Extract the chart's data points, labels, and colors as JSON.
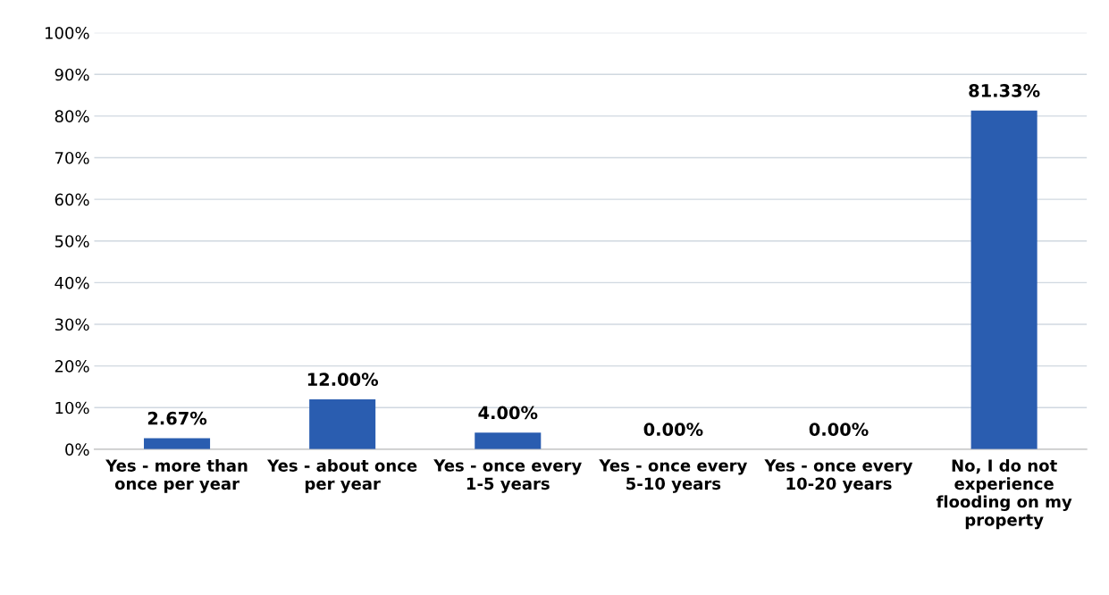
{
  "chart_data": {
    "type": "bar",
    "categories": [
      "Yes - more than\nonce per year",
      "Yes - about once\nper year",
      "Yes - once every\n1-5 years",
      "Yes - once every\n5-10 years",
      "Yes - once every\n10-20 years",
      "No, I do not\nexperience\nflooding on my\nproperty"
    ],
    "values": [
      2.67,
      12.0,
      4.0,
      0.0,
      0.0,
      81.33
    ],
    "value_labels": [
      "2.67%",
      "12.00%",
      "4.00%",
      "0.00%",
      "0.00%",
      "81.33%"
    ],
    "color": "#2a5db0",
    "ylim": [
      0,
      100
    ],
    "yticks": [
      {
        "value": 0,
        "label": "0%"
      },
      {
        "value": 10,
        "label": "10%"
      },
      {
        "value": 20,
        "label": "20%"
      },
      {
        "value": 30,
        "label": "30%"
      },
      {
        "value": 40,
        "label": "40%"
      },
      {
        "value": 50,
        "label": "50%"
      },
      {
        "value": 60,
        "label": "60%"
      },
      {
        "value": 70,
        "label": "70%"
      },
      {
        "value": 80,
        "label": "80%"
      },
      {
        "value": 90,
        "label": "90%"
      },
      {
        "value": 100,
        "label": "100%"
      }
    ],
    "grid": "y"
  }
}
